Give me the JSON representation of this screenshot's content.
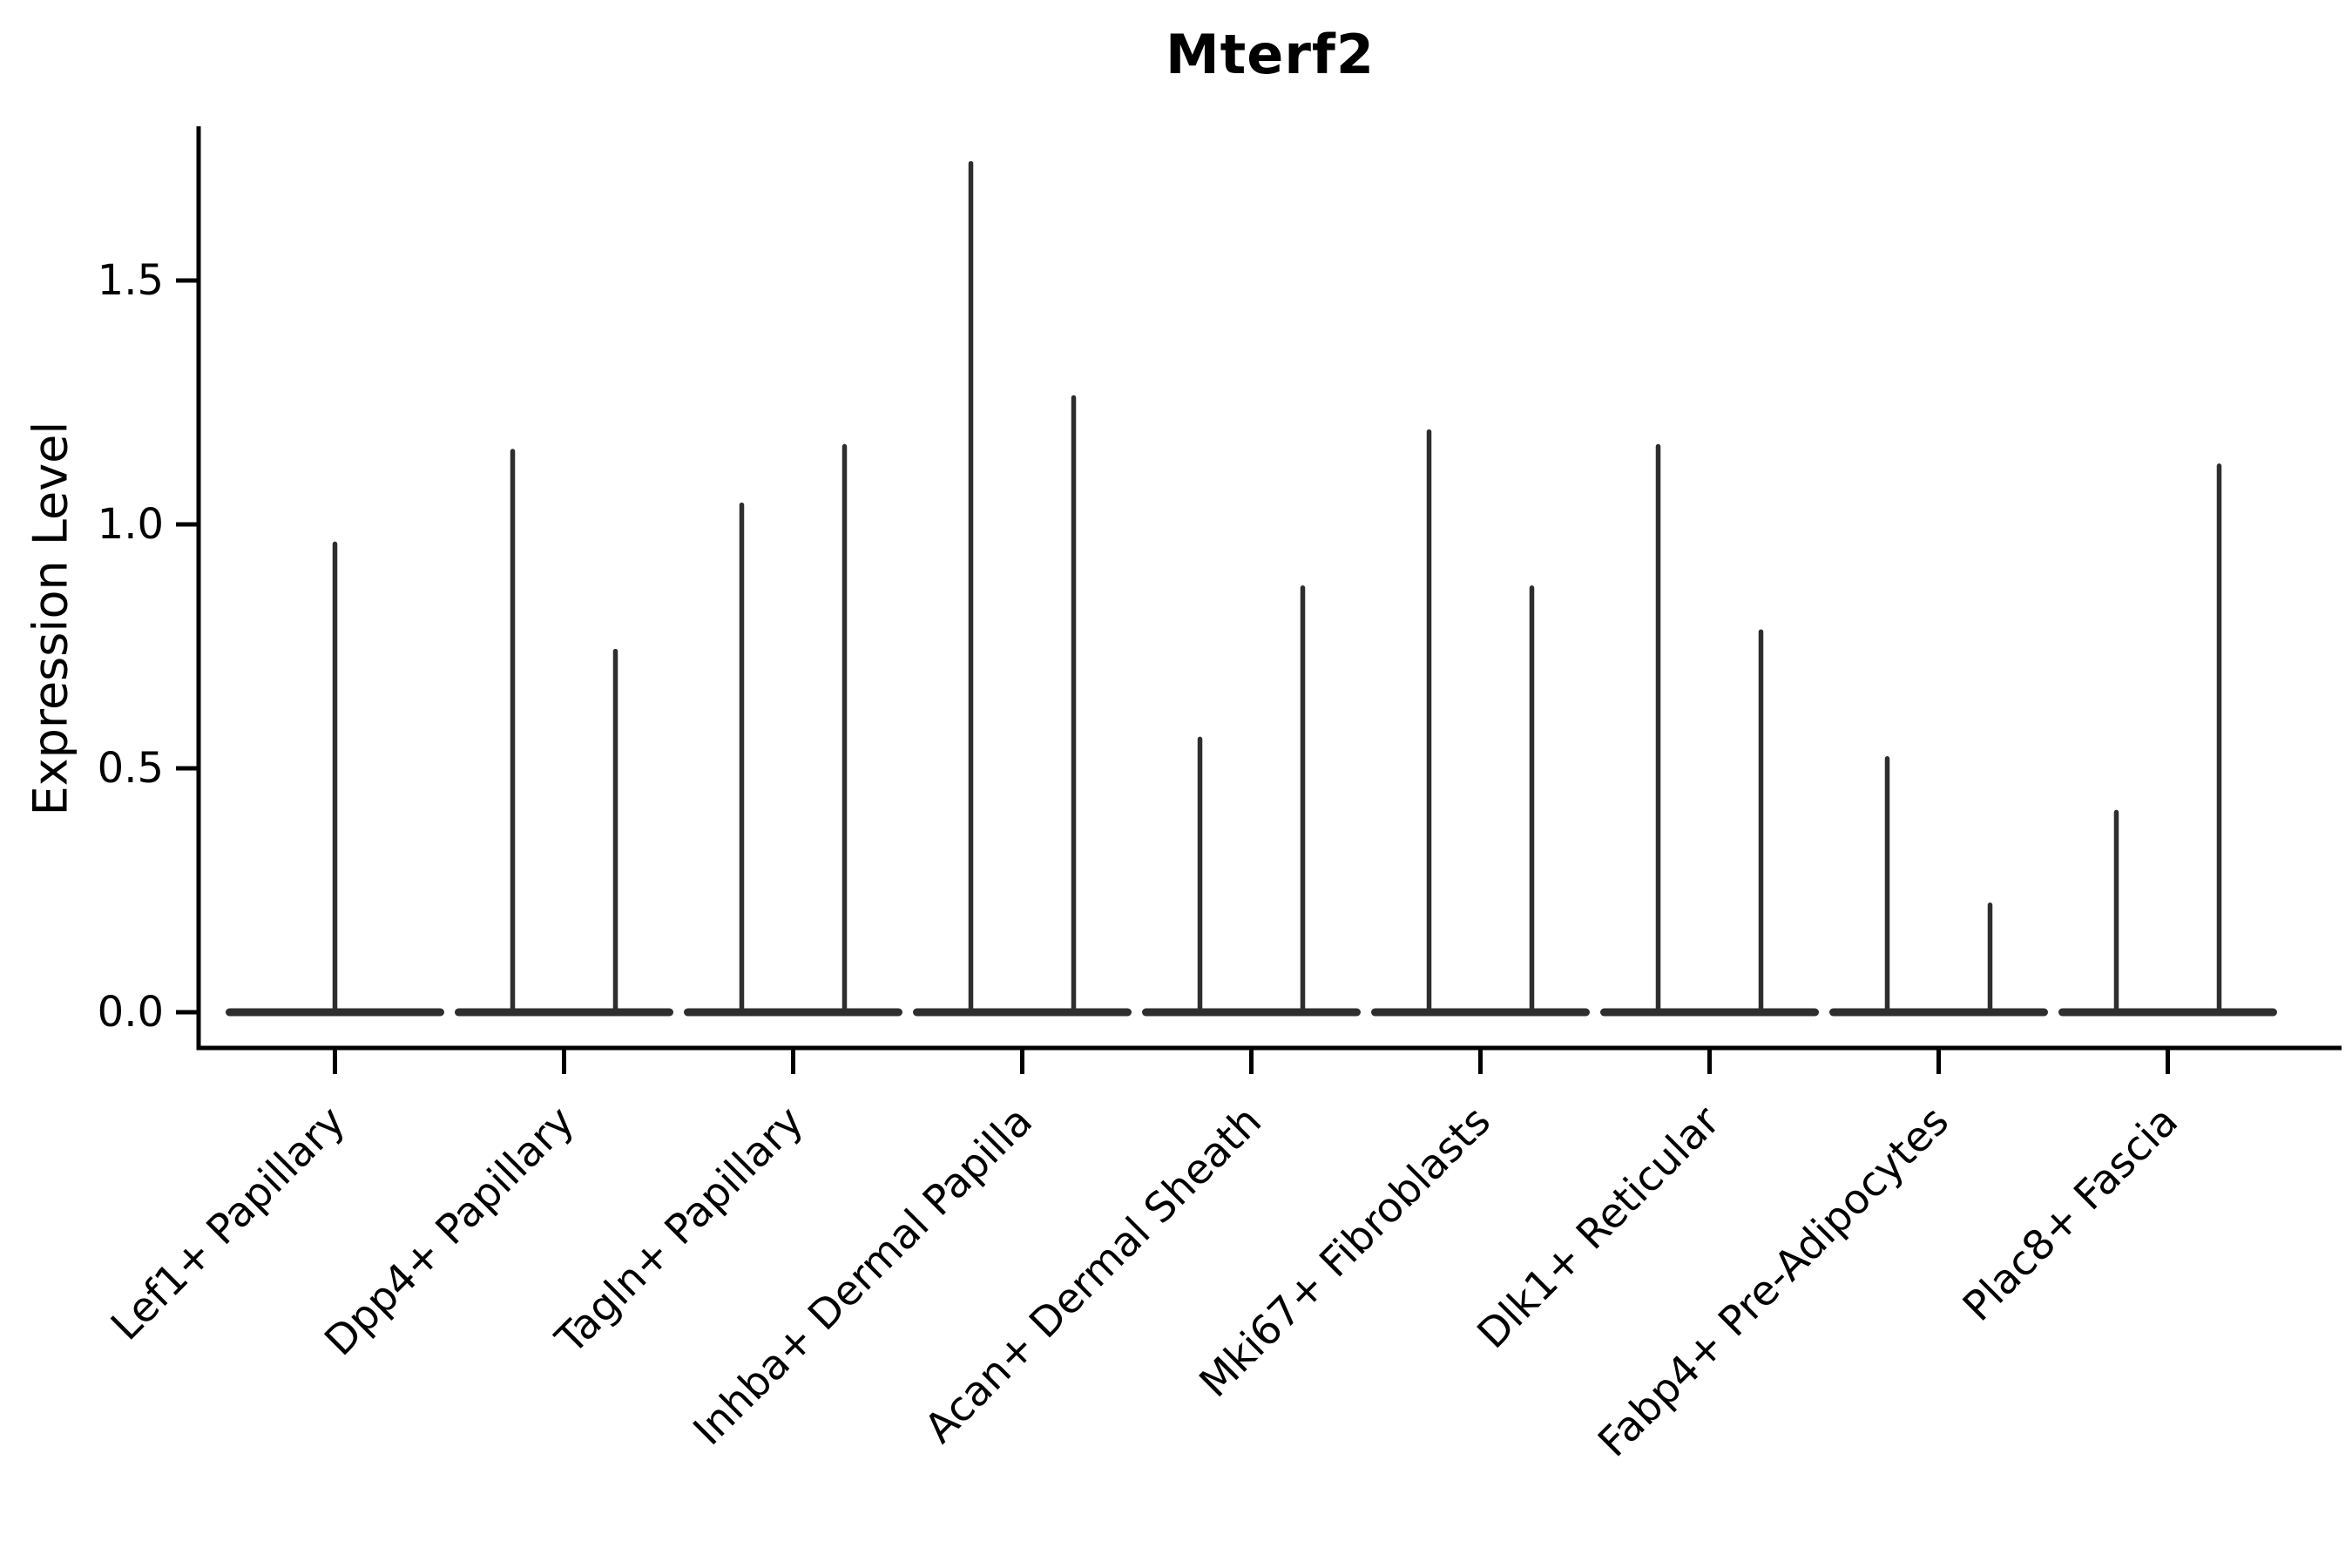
{
  "figure": {
    "background": "#ffffff"
  },
  "chart_data": {
    "type": "violin",
    "title": "Mterf2",
    "ylabel": "Expression Level",
    "xlabel": "",
    "categories": [
      "Lef1+ Papillary",
      "Dpp4+ Papillary",
      "Tagln+ Papillary",
      "Inhba+ Dermal Papilla",
      "Acan+ Dermal Sheath",
      "Mki67+ Fibroblasts",
      "Dlk1+ Reticular",
      "Fabp4+ Pre-Adipocytes",
      "Plac8+ Fascia"
    ],
    "violin_maxima": [
      [
        0.96
      ],
      [
        1.15,
        0.74
      ],
      [
        1.04,
        1.16
      ],
      [
        1.74,
        1.26
      ],
      [
        0.56,
        0.87
      ],
      [
        1.19,
        0.87
      ],
      [
        1.16,
        0.78
      ],
      [
        0.52,
        0.22
      ],
      [
        0.41,
        1.12
      ]
    ],
    "baseline_value": 0.0,
    "y_ticks": [
      "0.0",
      "0.5",
      "1.0",
      "1.5"
    ],
    "ylim": [
      -0.07,
      1.82
    ],
    "grid": "off",
    "legend": "none",
    "ink_color": "#2e2e2e",
    "axis_color": "#000000"
  }
}
